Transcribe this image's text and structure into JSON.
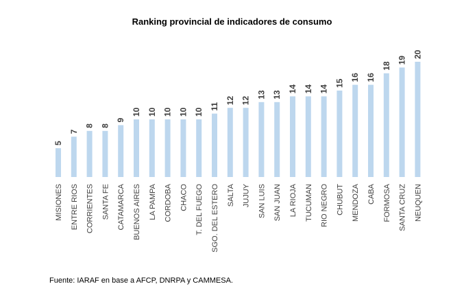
{
  "chart_data": {
    "type": "bar",
    "title": "Ranking provincial de indicadores de consumo",
    "xlabel": "",
    "ylabel": "",
    "ylim": [
      0,
      20
    ],
    "categories": [
      "MISIONES",
      "ENTRE RIOS",
      "CORRIENTES",
      "SANTA FE",
      "CATAMARCA",
      "BUENOS AIRES",
      "LA PAMPA",
      "CORDOBA",
      "CHACO",
      "T. DEL FUEGO",
      "SGO. DEL ESTERO",
      "SALTA",
      "JUJUY",
      "SAN LUIS",
      "SAN JUAN",
      "LA RIOJA",
      "TUCUMAN",
      "RIO NEGRO",
      "CHUBUT",
      "MENDOZA",
      "CABA",
      "FORMOSA",
      "SANTA CRUZ",
      "NEUQUEN"
    ],
    "values": [
      5,
      7,
      8,
      8,
      9,
      10,
      10,
      10,
      10,
      10,
      11,
      12,
      12,
      13,
      13,
      14,
      14,
      14,
      15,
      16,
      16,
      18,
      19,
      20
    ],
    "grid": false,
    "legend": "none",
    "bar_color": "#bdd7ee"
  },
  "source": "Fuente: IARAF en base a AFCP, DNRPA y CAMMESA."
}
